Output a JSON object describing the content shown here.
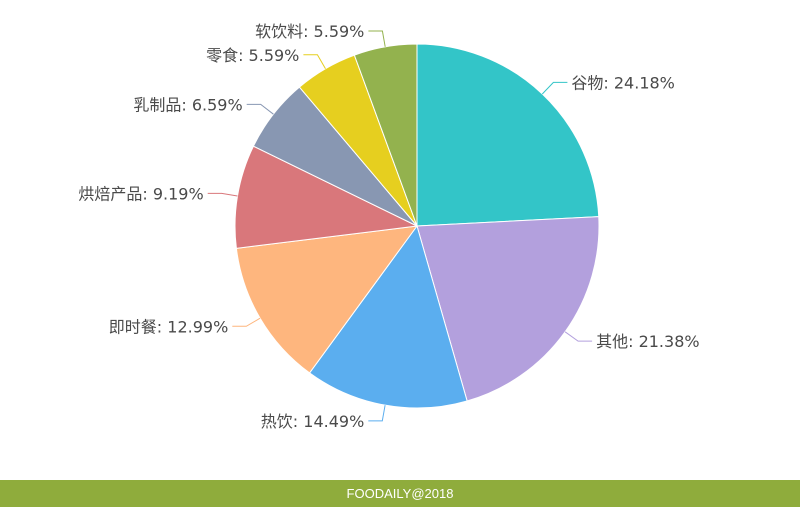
{
  "chart_data": {
    "type": "pie",
    "title": "",
    "slices": [
      {
        "label": "谷物",
        "value": 24.18,
        "display": "谷物: 24.18%",
        "color": "#33c5c8"
      },
      {
        "label": "其他",
        "value": 21.38,
        "display": "其他: 21.38%",
        "color": "#b3a0dd"
      },
      {
        "label": "热饮",
        "value": 14.49,
        "display": "热饮: 14.49%",
        "color": "#5baeef"
      },
      {
        "label": "即时餐",
        "value": 12.99,
        "display": "即时餐: 12.99%",
        "color": "#feb67e"
      },
      {
        "label": "烘焙产品",
        "value": 9.19,
        "display": "烘焙产品: 9.19%",
        "color": "#d9777b"
      },
      {
        "label": "乳制品",
        "value": 6.59,
        "display": "乳制品: 6.59%",
        "color": "#8897b2"
      },
      {
        "label": "零食",
        "value": 5.59,
        "display": "零食: 5.59%",
        "color": "#e6cf1f"
      },
      {
        "label": "软饮料",
        "value": 5.59,
        "display": "软饮料: 5.59%",
        "color": "#93b24e"
      }
    ]
  },
  "footer": {
    "text": "FOODAILY@2018",
    "color": "#8fac3c"
  }
}
